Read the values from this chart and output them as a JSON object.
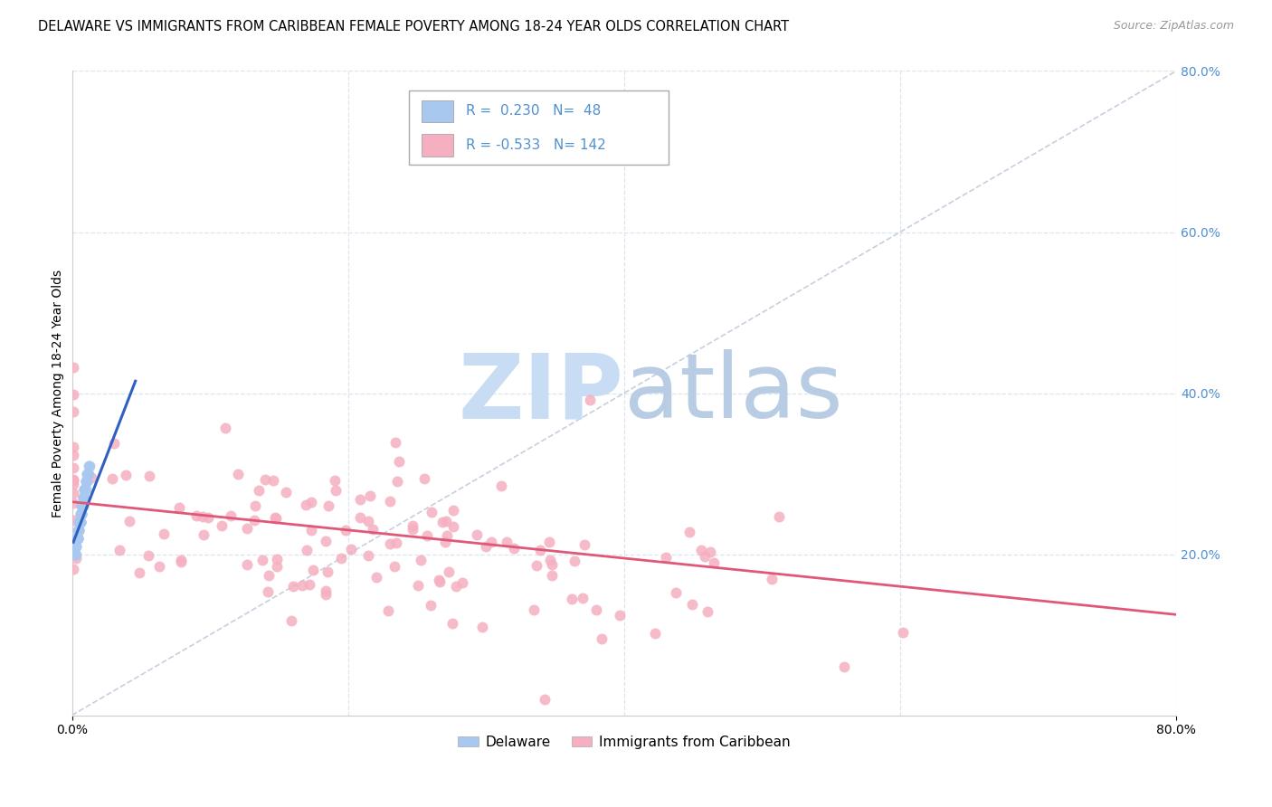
{
  "title": "DELAWARE VS IMMIGRANTS FROM CARIBBEAN FEMALE POVERTY AMONG 18-24 YEAR OLDS CORRELATION CHART",
  "source": "Source: ZipAtlas.com",
  "ylabel": "Female Poverty Among 18-24 Year Olds",
  "xlim": [
    0.0,
    0.8
  ],
  "ylim": [
    0.0,
    0.8
  ],
  "x_ticks_labels": [
    "0.0%",
    "80.0%"
  ],
  "x_ticks_pos": [
    0.0,
    0.8
  ],
  "delaware_R": 0.23,
  "delaware_N": 48,
  "caribbean_R": -0.533,
  "caribbean_N": 142,
  "delaware_color": "#a8c8f0",
  "caribbean_color": "#f5afc0",
  "delaware_line_color": "#3060c0",
  "caribbean_line_color": "#e05878",
  "identity_line_color": "#b8c4d8",
  "watermark_zip_color": "#c8d8f0",
  "watermark_atlas_color": "#b0bcd0",
  "title_fontsize": 10.5,
  "source_fontsize": 9,
  "legend_fontsize": 11,
  "axis_tick_fontsize": 10,
  "right_tick_color": "#5090d0",
  "background_color": "#ffffff",
  "grid_color": "#dde4ee",
  "delaware_seed": 7,
  "caribbean_seed": 42,
  "del_x_raw": [
    0.005,
    0.008,
    0.01,
    0.012,
    0.003,
    0.006,
    0.004,
    0.007,
    0.009,
    0.011,
    0.013,
    0.002,
    0.005,
    0.008,
    0.006,
    0.009,
    0.004,
    0.007,
    0.01,
    0.003,
    0.006,
    0.005,
    0.008,
    0.011,
    0.007,
    0.004,
    0.006,
    0.009,
    0.012,
    0.005,
    0.003,
    0.007,
    0.01,
    0.008,
    0.006,
    0.004,
    0.009,
    0.011,
    0.005,
    0.007,
    0.003,
    0.006,
    0.008,
    0.01,
    0.004,
    0.007,
    0.005,
    0.009
  ],
  "del_y_raw": [
    0.24,
    0.26,
    0.28,
    0.3,
    0.22,
    0.25,
    0.23,
    0.25,
    0.27,
    0.29,
    0.31,
    0.2,
    0.24,
    0.27,
    0.25,
    0.28,
    0.22,
    0.26,
    0.29,
    0.21,
    0.24,
    0.23,
    0.27,
    0.3,
    0.25,
    0.22,
    0.24,
    0.28,
    0.31,
    0.23,
    0.2,
    0.25,
    0.29,
    0.26,
    0.24,
    0.22,
    0.27,
    0.3,
    0.23,
    0.25,
    0.21,
    0.24,
    0.27,
    0.29,
    0.22,
    0.26,
    0.23,
    0.28
  ],
  "car_line_x0": 0.0,
  "car_line_x1": 0.8,
  "car_line_y0": 0.265,
  "car_line_y1": 0.125,
  "del_line_x0": 0.001,
  "del_line_x1": 0.046,
  "del_line_y0": 0.215,
  "del_line_y1": 0.415
}
